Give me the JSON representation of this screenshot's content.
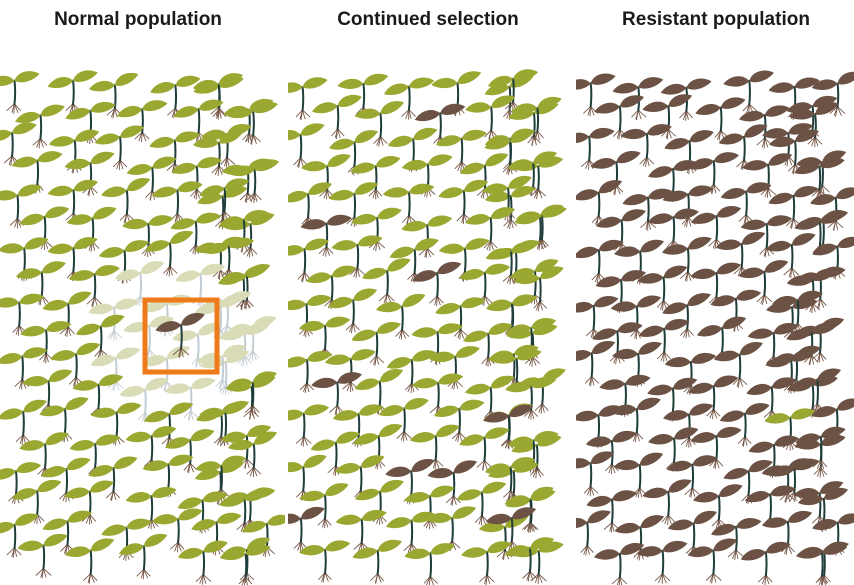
{
  "panels": [
    {
      "id": "normal",
      "title": "Normal population",
      "resistant_fraction": 0.0,
      "has_highlight": true
    },
    {
      "id": "selection",
      "title": "Continued selection",
      "resistant_fraction": 0.08,
      "has_highlight": false
    },
    {
      "id": "resistant",
      "title": "Resistant population",
      "resistant_fraction": 0.97,
      "has_highlight": false
    }
  ],
  "colors": {
    "susceptible_leaf": "#9aa730",
    "resistant_leaf": "#6b5244",
    "stem": "#1f3d3a",
    "root": "#7a5a4a",
    "highlight_box": "#ee7a1a",
    "faded_leaf": "#d9dcb6",
    "faded_stem": "#c3ccd2",
    "title_text": "#1a1a1a"
  },
  "icons": {
    "plant": "seedling-icon",
    "highlight": "highlight-box"
  }
}
